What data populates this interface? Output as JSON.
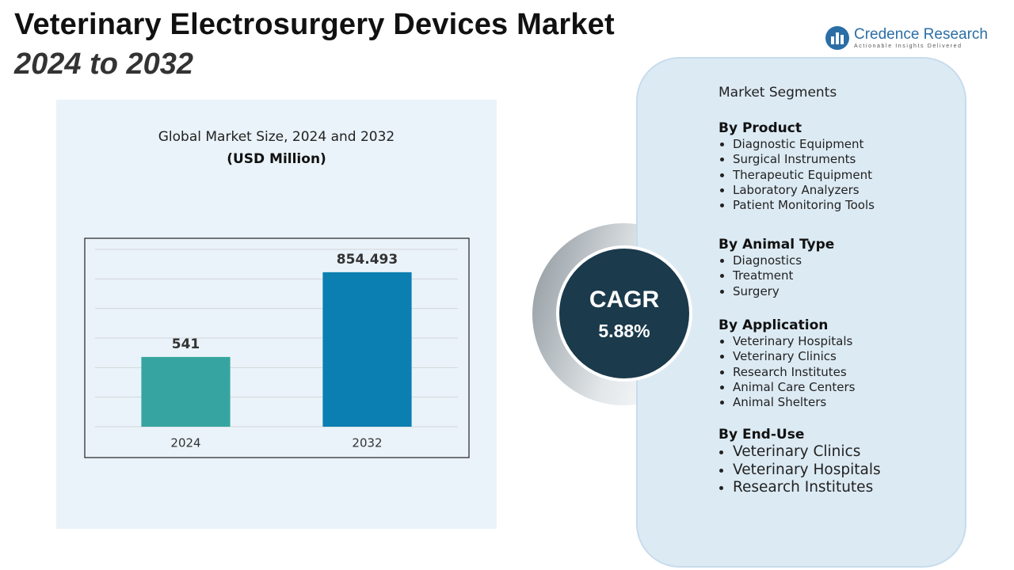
{
  "header": {
    "title": "Veterinary Electrosurgery Devices Market",
    "subtitle": "2024 to 2032"
  },
  "logo": {
    "name": "Credence Research",
    "tagline": "Actionable Insights Delivered"
  },
  "chart_data": {
    "type": "bar",
    "title": "Global Market Size, 2024 and 2032",
    "subtitle": "(USD Million)",
    "categories": [
      "2024",
      "2032"
    ],
    "values": [
      541,
      854.493
    ],
    "colors": [
      "#36a5a1",
      "#0b7fb1"
    ],
    "ylim": [
      283,
      939
    ],
    "grid": true
  },
  "cagr": {
    "label": "CAGR",
    "value": "5.88%"
  },
  "segments": {
    "title": "Market Segments",
    "groups": [
      {
        "heading": "By Product",
        "items": [
          "Diagnostic Equipment",
          "Surgical Instruments",
          "Therapeutic Equipment",
          "Laboratory Analyzers",
          "Patient Monitoring Tools"
        ]
      },
      {
        "heading": "By Animal Type",
        "items": [
          "Diagnostics",
          "Treatment",
          "Surgery"
        ]
      },
      {
        "heading": "By Application",
        "items": [
          "Veterinary Hospitals",
          "Veterinary Clinics",
          "Research Institutes",
          "Animal Care Centers",
          "Animal Shelters"
        ]
      },
      {
        "heading": "By End-Use",
        "items": [
          "Veterinary Clinics",
          "Veterinary Hospitals",
          "Research Institutes"
        ]
      }
    ]
  }
}
